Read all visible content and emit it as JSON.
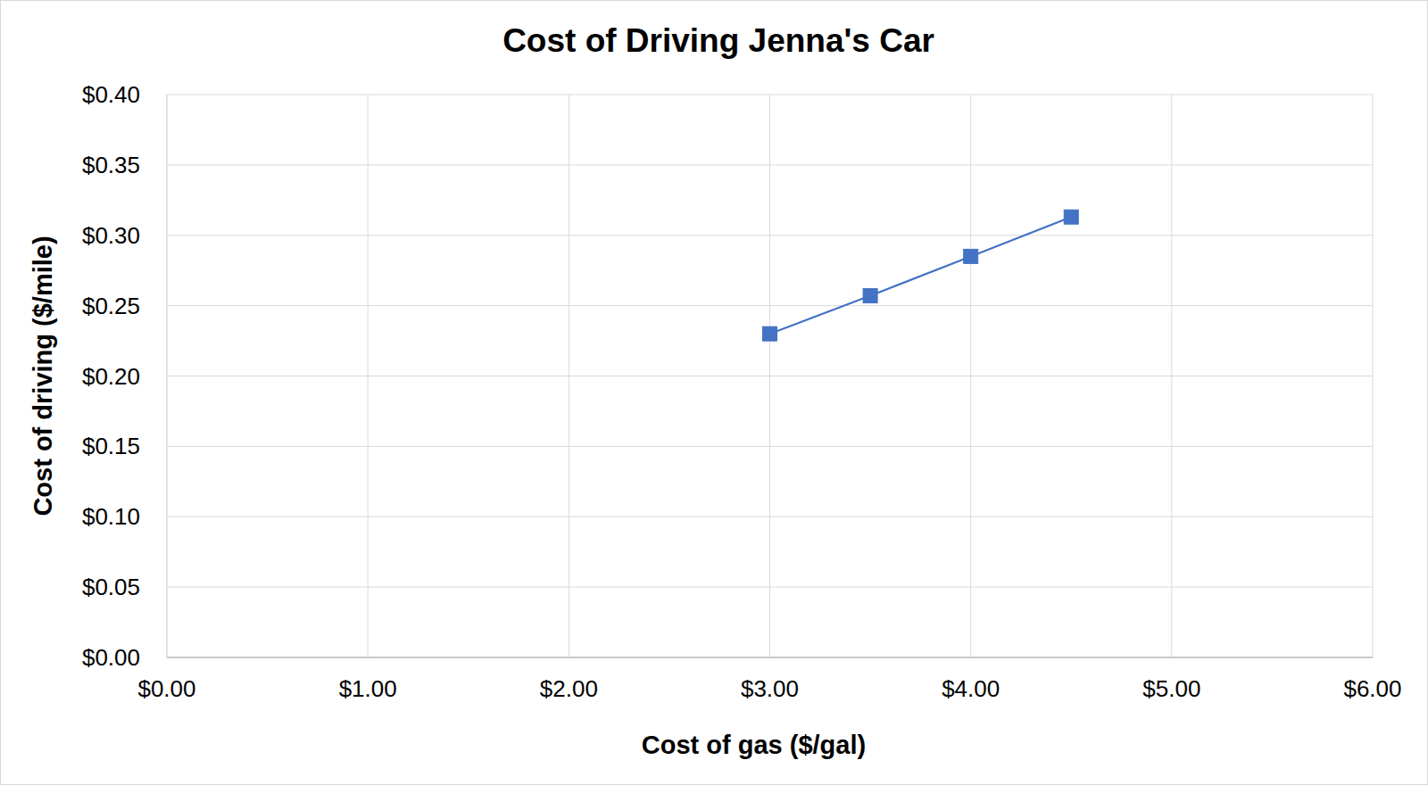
{
  "chart_data": {
    "type": "line",
    "title": "Cost of Driving Jenna's Car",
    "x_label": "Cost of gas ($/gal)",
    "y_label": "Cost of driving ($/mile)",
    "x": [
      3.0,
      3.5,
      4.0,
      4.5
    ],
    "values": [
      0.23,
      0.257,
      0.285,
      0.313
    ],
    "color": "#4472c4",
    "marker": "square",
    "line_style": "solid",
    "xlim": [
      0,
      6
    ],
    "xticks": [
      {
        "value": 0,
        "label": "$0.00"
      },
      {
        "value": 1,
        "label": "$1.00"
      },
      {
        "value": 2,
        "label": "$2.00"
      },
      {
        "value": 3,
        "label": "$3.00"
      },
      {
        "value": 4,
        "label": "$4.00"
      },
      {
        "value": 5,
        "label": "$5.00"
      },
      {
        "value": 6,
        "label": "$6.00"
      }
    ],
    "ylim": [
      0,
      0.4
    ],
    "yticks": [
      {
        "value": 0,
        "label": "$0.00"
      },
      {
        "value": 0.05,
        "label": "$0.05"
      },
      {
        "value": 0.1,
        "label": "$0.10"
      },
      {
        "value": 0.15,
        "label": "$0.15"
      },
      {
        "value": 0.2,
        "label": "$0.20"
      },
      {
        "value": 0.25,
        "label": "$0.25"
      },
      {
        "value": 0.3,
        "label": "$0.30"
      },
      {
        "value": 0.35,
        "label": "$0.35"
      },
      {
        "value": 0.4,
        "label": "$0.40"
      }
    ],
    "grid": true
  }
}
